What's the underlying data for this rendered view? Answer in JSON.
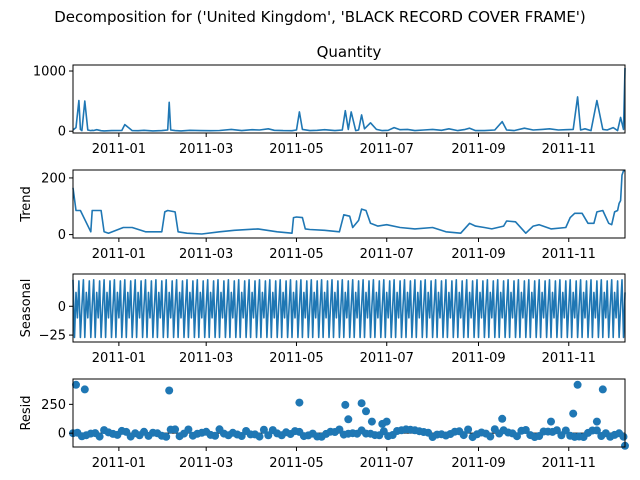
{
  "suptitle": "Decomposition for ('United Kingdom', 'BLACK RECORD COVER FRAME')",
  "chart_data": [
    {
      "type": "line",
      "title": "Quantity",
      "ylabel": "",
      "ylim": [
        -30,
        1100
      ],
      "yticks": [
        0,
        1000
      ],
      "yticklabels": [
        "0",
        "1000"
      ],
      "xlim": [
        "2010-12-01",
        "2011-12-09"
      ],
      "xticks": [
        "2011-01-01",
        "2011-03-01",
        "2011-05-01",
        "2011-07-01",
        "2011-09-01",
        "2011-11-01"
      ],
      "xticklabels": [
        "2011-01",
        "2011-03",
        "2011-05",
        "2011-07",
        "2011-09",
        "2011-11"
      ],
      "color": "#1f77b4",
      "x": [
        "2010-12-01",
        "2010-12-03",
        "2010-12-05",
        "2010-12-06",
        "2010-12-07",
        "2010-12-09",
        "2010-12-11",
        "2010-12-13",
        "2010-12-14",
        "2010-12-15",
        "2010-12-17",
        "2010-12-20",
        "2010-12-22",
        "2010-12-27",
        "2011-01-03",
        "2011-01-05",
        "2011-01-10",
        "2011-01-14",
        "2011-01-18",
        "2011-01-24",
        "2011-01-30",
        "2011-02-03",
        "2011-02-04",
        "2011-02-05",
        "2011-02-08",
        "2011-02-12",
        "2011-02-18",
        "2011-02-25",
        "2011-03-04",
        "2011-03-10",
        "2011-03-18",
        "2011-03-25",
        "2011-04-01",
        "2011-04-06",
        "2011-04-12",
        "2011-04-16",
        "2011-04-22",
        "2011-04-28",
        "2011-05-01",
        "2011-05-03",
        "2011-05-05",
        "2011-05-10",
        "2011-05-15",
        "2011-05-20",
        "2011-05-27",
        "2011-06-01",
        "2011-06-03",
        "2011-06-05",
        "2011-06-07",
        "2011-06-10",
        "2011-06-12",
        "2011-06-14",
        "2011-06-16",
        "2011-06-20",
        "2011-06-24",
        "2011-06-28",
        "2011-07-02",
        "2011-07-06",
        "2011-07-10",
        "2011-07-15",
        "2011-07-20",
        "2011-07-26",
        "2011-08-01",
        "2011-08-07",
        "2011-08-12",
        "2011-08-18",
        "2011-08-23",
        "2011-08-26",
        "2011-08-30",
        "2011-09-05",
        "2011-09-12",
        "2011-09-17",
        "2011-09-20",
        "2011-09-25",
        "2011-10-02",
        "2011-10-08",
        "2011-10-14",
        "2011-10-19",
        "2011-10-25",
        "2011-10-30",
        "2011-11-04",
        "2011-11-07",
        "2011-11-09",
        "2011-11-12",
        "2011-11-16",
        "2011-11-20",
        "2011-11-24",
        "2011-11-27",
        "2011-12-01",
        "2011-12-04",
        "2011-12-06",
        "2011-12-08",
        "2011-12-09"
      ],
      "y": [
        20,
        60,
        510,
        30,
        10,
        500,
        20,
        10,
        15,
        12,
        25,
        8,
        5,
        10,
        12,
        110,
        10,
        8,
        15,
        5,
        10,
        20,
        480,
        20,
        10,
        5,
        15,
        10,
        8,
        12,
        30,
        10,
        25,
        20,
        40,
        15,
        10,
        8,
        20,
        320,
        30,
        10,
        15,
        25,
        10,
        20,
        340,
        30,
        320,
        10,
        20,
        270,
        40,
        140,
        30,
        10,
        15,
        60,
        25,
        30,
        10,
        20,
        30,
        15,
        40,
        10,
        30,
        50,
        10,
        10,
        20,
        160,
        20,
        10,
        50,
        20,
        30,
        40,
        20,
        25,
        30,
        570,
        20,
        40,
        10,
        510,
        30,
        20,
        60,
        10,
        230,
        30,
        1050
      ]
    },
    {
      "type": "line",
      "title": "",
      "ylabel": "Trend",
      "ylim": [
        -12,
        228
      ],
      "yticks": [
        0,
        200
      ],
      "yticklabels": [
        "0",
        "200"
      ],
      "xticklabels": [
        "2011-01",
        "2011-03",
        "2011-05",
        "2011-07",
        "2011-09",
        "2011-11"
      ],
      "color": "#1f77b4",
      "x": [
        "2010-12-01",
        "2010-12-03",
        "2010-12-06",
        "2010-12-13",
        "2010-12-14",
        "2010-12-20",
        "2010-12-22",
        "2010-12-25",
        "2011-01-04",
        "2011-01-10",
        "2011-01-19",
        "2011-01-30",
        "2011-02-01",
        "2011-02-03",
        "2011-02-08",
        "2011-02-10",
        "2011-02-16",
        "2011-02-26",
        "2011-03-10",
        "2011-03-20",
        "2011-04-05",
        "2011-04-18",
        "2011-04-28",
        "2011-04-29",
        "2011-05-01",
        "2011-05-05",
        "2011-05-07",
        "2011-05-10",
        "2011-05-20",
        "2011-05-30",
        "2011-06-02",
        "2011-06-06",
        "2011-06-08",
        "2011-06-12",
        "2011-06-14",
        "2011-06-17",
        "2011-06-20",
        "2011-06-25",
        "2011-07-01",
        "2011-07-10",
        "2011-07-20",
        "2011-08-01",
        "2011-08-10",
        "2011-08-20",
        "2011-08-26",
        "2011-08-30",
        "2011-09-05",
        "2011-09-10",
        "2011-09-18",
        "2011-09-20",
        "2011-09-26",
        "2011-10-03",
        "2011-10-08",
        "2011-10-12",
        "2011-10-20",
        "2011-10-30",
        "2011-11-02",
        "2011-11-05",
        "2011-11-10",
        "2011-11-14",
        "2011-11-18",
        "2011-11-20",
        "2011-11-24",
        "2011-11-28",
        "2011-11-30",
        "2011-12-02",
        "2011-12-04",
        "2011-12-05",
        "2011-12-06",
        "2011-12-07",
        "2011-12-08",
        "2011-12-09"
      ],
      "y": [
        165,
        85,
        85,
        10,
        85,
        85,
        10,
        5,
        25,
        25,
        10,
        10,
        80,
        85,
        80,
        10,
        5,
        2,
        10,
        15,
        20,
        10,
        5,
        60,
        62,
        60,
        20,
        18,
        15,
        10,
        70,
        65,
        25,
        50,
        90,
        85,
        40,
        30,
        35,
        25,
        20,
        25,
        10,
        5,
        40,
        30,
        25,
        20,
        30,
        48,
        45,
        5,
        30,
        35,
        20,
        25,
        60,
        75,
        75,
        40,
        40,
        80,
        85,
        40,
        35,
        80,
        85,
        110,
        120,
        210,
        225,
        225
      ]
    },
    {
      "type": "line",
      "title": "",
      "ylabel": "Seasonal",
      "ylim": [
        -31,
        28
      ],
      "yticks": [
        -25,
        0
      ],
      "yticklabels": [
        "−25",
        "0"
      ],
      "xticklabels": [
        "2011-01",
        "2011-03",
        "2011-05",
        "2011-07",
        "2011-09",
        "2011-11"
      ],
      "color": "#1f77b4",
      "period_days": 7,
      "pattern": [
        23,
        -27,
        12,
        -10,
        22,
        -27,
        0
      ],
      "start": "2010-12-01",
      "end": "2011-12-09"
    },
    {
      "type": "scatter",
      "title": "",
      "ylabel": "Resid",
      "ylim": [
        -120,
        470
      ],
      "yticks": [
        0,
        250
      ],
      "yticklabels": [
        "0",
        "250"
      ],
      "xticklabels": [
        "2011-01",
        "2011-03",
        "2011-05",
        "2011-07",
        "2011-09",
        "2011-11"
      ],
      "color": "#1f77b4",
      "hline": 0,
      "outliers": [
        {
          "x": "2010-12-03",
          "y": 420
        },
        {
          "x": "2010-12-09",
          "y": 380
        },
        {
          "x": "2011-02-04",
          "y": 370
        },
        {
          "x": "2011-05-03",
          "y": 265
        },
        {
          "x": "2011-06-03",
          "y": 245
        },
        {
          "x": "2011-06-05",
          "y": 120
        },
        {
          "x": "2011-06-14",
          "y": 260
        },
        {
          "x": "2011-06-17",
          "y": 190
        },
        {
          "x": "2011-06-21",
          "y": 100
        },
        {
          "x": "2011-06-28",
          "y": 80
        },
        {
          "x": "2011-07-01",
          "y": 100
        },
        {
          "x": "2011-09-17",
          "y": 125
        },
        {
          "x": "2011-10-20",
          "y": 100
        },
        {
          "x": "2011-11-04",
          "y": 170
        },
        {
          "x": "2011-11-07",
          "y": 420
        },
        {
          "x": "2011-11-20",
          "y": 100
        },
        {
          "x": "2011-11-24",
          "y": 380
        },
        {
          "x": "2011-12-09",
          "y": -110
        }
      ],
      "noise_amplitude": 35,
      "noise_step_days": 3
    }
  ]
}
